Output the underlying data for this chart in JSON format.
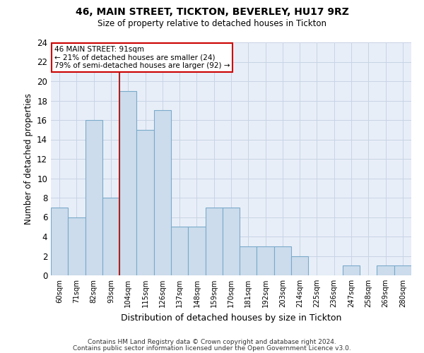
{
  "title1": "46, MAIN STREET, TICKTON, BEVERLEY, HU17 9RZ",
  "title2": "Size of property relative to detached houses in Tickton",
  "xlabel": "Distribution of detached houses by size in Tickton",
  "ylabel": "Number of detached properties",
  "categories": [
    "60sqm",
    "71sqm",
    "82sqm",
    "93sqm",
    "104sqm",
    "115sqm",
    "126sqm",
    "137sqm",
    "148sqm",
    "159sqm",
    "170sqm",
    "181sqm",
    "192sqm",
    "203sqm",
    "214sqm",
    "225sqm",
    "236sqm",
    "247sqm",
    "258sqm",
    "269sqm",
    "280sqm"
  ],
  "values": [
    7,
    6,
    16,
    8,
    19,
    15,
    17,
    5,
    5,
    7,
    7,
    3,
    3,
    3,
    2,
    0,
    0,
    1,
    0,
    1,
    1
  ],
  "bar_color": "#ccdcec",
  "bar_edge_color": "#7aaaca",
  "grid_color": "#c8d4e4",
  "background_color": "#e8eef8",
  "vline_after_index": 3,
  "vline_color": "#aa2222",
  "annotation_lines": [
    "46 MAIN STREET: 91sqm",
    "← 21% of detached houses are smaller (24)",
    "79% of semi-detached houses are larger (92) →"
  ],
  "annotation_box_color": "#cc0000",
  "ylim": [
    0,
    24
  ],
  "yticks": [
    0,
    2,
    4,
    6,
    8,
    10,
    12,
    14,
    16,
    18,
    20,
    22,
    24
  ],
  "footer1": "Contains HM Land Registry data © Crown copyright and database right 2024.",
  "footer2": "Contains public sector information licensed under the Open Government Licence v3.0."
}
